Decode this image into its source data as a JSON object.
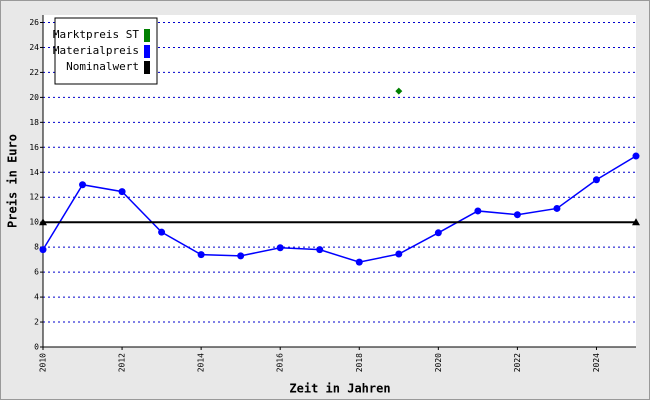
{
  "chart_data": {
    "type": "line",
    "x_label": "Zeit in Jahren",
    "y_label": "Preis in Euro",
    "x": [
      2010,
      2011,
      2012,
      2013,
      2014,
      2015,
      2016,
      2017,
      2018,
      2019,
      2020,
      2021,
      2022,
      2023,
      2024,
      2025
    ],
    "series": [
      {
        "name": "Marktpreis ST",
        "color": "#008000",
        "marker": "diamond",
        "values": [
          null,
          null,
          null,
          null,
          null,
          null,
          null,
          null,
          null,
          20.5,
          null,
          null,
          null,
          null,
          null,
          null
        ]
      },
      {
        "name": "Materialpreis",
        "color": "#0000ff",
        "marker": "circle",
        "values": [
          7.8,
          13.0,
          12.45,
          9.2,
          7.4,
          7.3,
          7.95,
          7.8,
          6.8,
          7.45,
          9.15,
          10.9,
          10.6,
          11.1,
          13.4,
          15.3
        ]
      },
      {
        "name": "Nominalwert",
        "color": "#000000",
        "marker": "triangle-ends",
        "values": [
          10,
          10,
          10,
          10,
          10,
          10,
          10,
          10,
          10,
          10,
          10,
          10,
          10,
          10,
          10,
          10
        ]
      }
    ],
    "xlim": [
      2010,
      2025
    ],
    "xticks": [
      2010,
      2012,
      2014,
      2016,
      2018,
      2020,
      2022,
      2024
    ],
    "ylim": [
      0,
      26.6
    ],
    "yticks": [
      0,
      2,
      4,
      6,
      8,
      10,
      12,
      14,
      16,
      18,
      20,
      22,
      24,
      26
    ],
    "grid": true,
    "legend": "top-left"
  }
}
